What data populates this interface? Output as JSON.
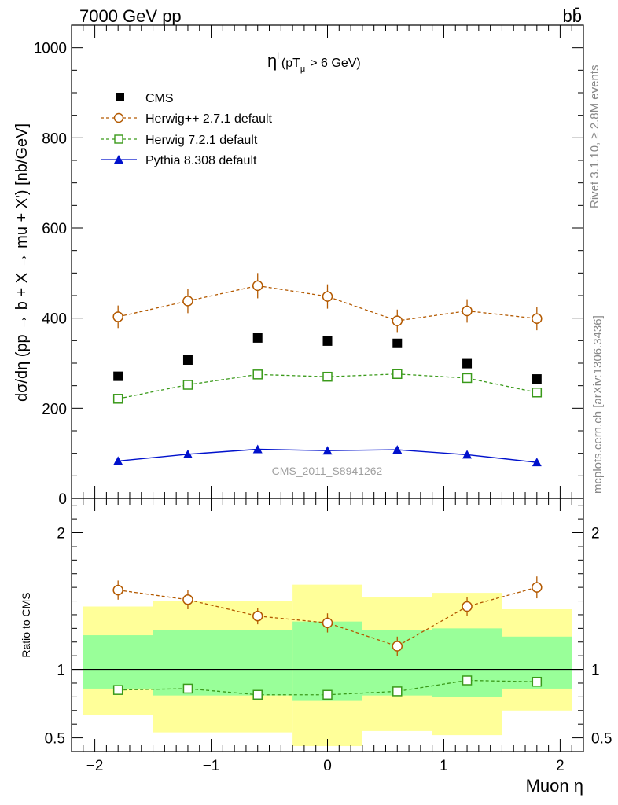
{
  "header": {
    "energy_label": "7000 GeV pp",
    "process_label": "bb̄",
    "rivet_label": "Rivet 3.1.10, ≥ 2.8M events",
    "source_label": "mcplots.cern.ch [arXiv:1306.3436]",
    "analysis_label": "CMS_2011_S8941262"
  },
  "colors": {
    "cms": "#000000",
    "herwigpp": "#b35900",
    "herwig7": "#3a9a1a",
    "pythia": "#0011cc",
    "band_outer": "#ffff99",
    "band_inner": "#99ff99"
  },
  "chart_data": [
    {
      "type": "scatter",
      "panel": "main",
      "title": "η^l (pT_μ > 6 GeV)",
      "title_main": "η",
      "title_sup": "l",
      "title_rest": "(pT",
      "title_sub": "μ",
      "title_tail": ">  6 GeV)",
      "ylabel": "dσ/dη (pp → b + X → mu + X') [nb/GeV]",
      "xlim": [
        -2.2,
        2.2
      ],
      "ylim": [
        0,
        1050
      ],
      "yticks": [
        0,
        200,
        400,
        600,
        800,
        1000
      ],
      "x": [
        -1.8,
        -1.2,
        -0.6,
        0.0,
        0.6,
        1.2,
        1.8
      ],
      "legend_position": "top-left",
      "series": [
        {
          "name": "CMS",
          "style": "marker-square-filled",
          "values": [
            271,
            307,
            356,
            349,
            344,
            299,
            265
          ]
        },
        {
          "name": "Herwig++ 2.7.1 default",
          "style": "dashed-open-circle",
          "values": [
            403,
            438,
            472,
            448,
            394,
            416,
            399
          ],
          "errors": [
            25,
            27,
            28,
            27,
            25,
            26,
            26
          ]
        },
        {
          "name": "Herwig 7.2.1 default",
          "style": "dashed-open-square",
          "values": [
            221,
            252,
            275,
            270,
            276,
            267,
            235
          ]
        },
        {
          "name": "Pythia 8.308 default",
          "style": "solid-filled-triangle",
          "values": [
            83,
            98,
            109,
            106,
            108,
            97,
            80
          ]
        }
      ]
    },
    {
      "type": "scatter",
      "panel": "ratio",
      "ylabel": "Ratio to CMS",
      "xlabel": "Muon η",
      "xlim": [
        -2.2,
        2.2
      ],
      "ylim": [
        0.4,
        2.25
      ],
      "yticks": [
        0.5,
        1,
        2
      ],
      "xticks": [
        -2,
        -1,
        0,
        1,
        2
      ],
      "bins": [
        {
          "x_low": -2.1,
          "x_high": -1.5,
          "outer": [
            0.67,
            1.46
          ],
          "inner": [
            0.86,
            1.25
          ]
        },
        {
          "x_low": -1.5,
          "x_high": -0.9,
          "outer": [
            0.54,
            1.5
          ],
          "inner": [
            0.81,
            1.29
          ]
        },
        {
          "x_low": -0.9,
          "x_high": -0.3,
          "outer": [
            0.54,
            1.5
          ],
          "inner": [
            0.81,
            1.29
          ]
        },
        {
          "x_low": -0.3,
          "x_high": 0.3,
          "outer": [
            0.44,
            1.62
          ],
          "inner": [
            0.77,
            1.35
          ]
        },
        {
          "x_low": 0.3,
          "x_high": 0.9,
          "outer": [
            0.55,
            1.53
          ],
          "inner": [
            0.81,
            1.29
          ]
        },
        {
          "x_low": 0.9,
          "x_high": 1.5,
          "outer": [
            0.52,
            1.56
          ],
          "inner": [
            0.8,
            1.3
          ]
        },
        {
          "x_low": 1.5,
          "x_high": 2.1,
          "outer": [
            0.7,
            1.44
          ],
          "inner": [
            0.86,
            1.24
          ]
        }
      ],
      "x": [
        -1.8,
        -1.2,
        -0.6,
        0.0,
        0.6,
        1.2,
        1.8
      ],
      "series": [
        {
          "name": "Herwig++ 2.7.1 default",
          "values": [
            1.58,
            1.51,
            1.39,
            1.34,
            1.17,
            1.46,
            1.6
          ],
          "errors": [
            0.07,
            0.07,
            0.06,
            0.07,
            0.07,
            0.07,
            0.08
          ]
        },
        {
          "name": "Herwig 7.2.1 default",
          "values": [
            0.85,
            0.86,
            0.815,
            0.815,
            0.84,
            0.92,
            0.91
          ]
        }
      ]
    }
  ]
}
